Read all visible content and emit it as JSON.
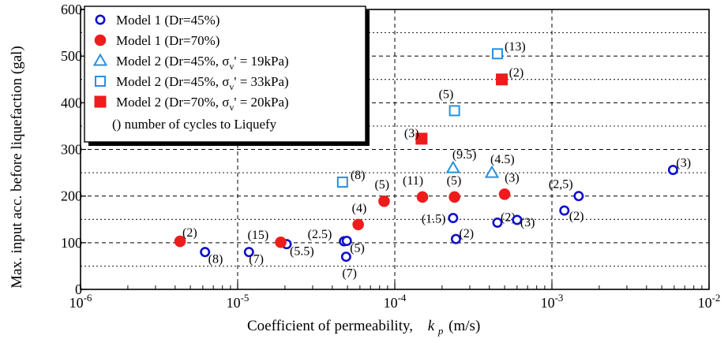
{
  "chart_data": {
    "type": "scatter",
    "title": "",
    "xlabel": "Coefficient of permeability,",
    "xlabel_var": "k",
    "xlabel_sub": "p",
    "xlabel_unit": "(m/s)",
    "ylabel": "Max. input acc. before liquefaction (gal)",
    "xscale": "log",
    "xlim": [
      1e-06,
      0.01
    ],
    "ylim": [
      0,
      600
    ],
    "grid": true,
    "legend_position": "top-left",
    "x_ticks": [
      {
        "value": 1e-06,
        "base": "10",
        "exp": "-6"
      },
      {
        "value": 1e-05,
        "base": "10",
        "exp": "-5"
      },
      {
        "value": 0.0001,
        "base": "10",
        "exp": "-4"
      },
      {
        "value": 0.001,
        "base": "10",
        "exp": "-3"
      },
      {
        "value": 0.01,
        "base": "10",
        "exp": "-2"
      }
    ],
    "y_ticks": [
      "0",
      "100",
      "200",
      "300",
      "400",
      "500",
      "600"
    ],
    "legend_note": "() number of cycles to Liquefy",
    "series": [
      {
        "name": "Model 1 (Dr=45%)",
        "legend_label": "Model 1 (Dr=45%)",
        "marker": "circle-open",
        "color": "#1010cc",
        "points": [
          {
            "x": 6.2e-06,
            "y": 80,
            "label": "(8)"
          },
          {
            "x": 1.18e-05,
            "y": 80,
            "label": "(7)"
          },
          {
            "x": 2.05e-05,
            "y": 97,
            "label": "(5.5)"
          },
          {
            "x": 4.75e-05,
            "y": 103,
            "label": "(2.5)"
          },
          {
            "x": 4.95e-05,
            "y": 104,
            "label": "(5)"
          },
          {
            "x": 4.9e-05,
            "y": 70,
            "label": "(7)"
          },
          {
            "x": 0.000235,
            "y": 153,
            "label": "(1.5)"
          },
          {
            "x": 0.000245,
            "y": 108,
            "label": "(2)"
          },
          {
            "x": 0.00045,
            "y": 143,
            "label": "(2)"
          },
          {
            "x": 0.0006,
            "y": 149,
            "label": "(3)"
          },
          {
            "x": 0.0012,
            "y": 169,
            "label": "(2)"
          },
          {
            "x": 0.00148,
            "y": 200,
            "label": "(2,5)"
          },
          {
            "x": 0.0059,
            "y": 256,
            "label": "(3)"
          }
        ]
      },
      {
        "name": "Model 1 (Dr=70%)",
        "legend_label": "Model 1 (Dr=70%)",
        "marker": "circle-filled",
        "color": "#ee1c1c",
        "points": [
          {
            "x": 4.3e-06,
            "y": 103,
            "label": "(2)"
          },
          {
            "x": 1.88e-05,
            "y": 101,
            "label": "(15)"
          },
          {
            "x": 5.85e-05,
            "y": 139,
            "label": "(4)"
          },
          {
            "x": 8.55e-05,
            "y": 189,
            "label": "(5)"
          },
          {
            "x": 0.00015,
            "y": 198,
            "label": "(11)"
          },
          {
            "x": 0.00024,
            "y": 198,
            "label": "(5)"
          },
          {
            "x": 0.0005,
            "y": 204,
            "label": "(3)"
          }
        ]
      },
      {
        "name": "Model 2 (Dr=45%, σv' = 19kPa)",
        "legend_label": "Model 2 (Dr=45%,  σ",
        "legend_sub": "v",
        "legend_tail": "' = 19kPa)",
        "marker": "triangle-open",
        "color": "#2a8fe0",
        "points": [
          {
            "x": 0.000235,
            "y": 260,
            "label": "(9.5)"
          },
          {
            "x": 0.000415,
            "y": 250,
            "label": "(4.5)"
          }
        ]
      },
      {
        "name": "Model 2 (Dr=45%, σv' = 33kPa)",
        "legend_label": "Model 2 (Dr=45%,  σ",
        "legend_sub": "v",
        "legend_tail": "' = 33kPa)",
        "marker": "square-open",
        "color": "#2a8fe0",
        "points": [
          {
            "x": 4.65e-05,
            "y": 230,
            "label": "(8)"
          },
          {
            "x": 0.00024,
            "y": 383,
            "label": "(5)"
          },
          {
            "x": 0.00045,
            "y": 505,
            "label": "(13)"
          }
        ]
      },
      {
        "name": "Model 2 (Dr=70%, σv' = 20kPa)",
        "legend_label": "Model 2 (Dr=70%,  σ",
        "legend_sub": "v",
        "legend_tail": "' = 20kPa)",
        "marker": "square-filled",
        "color": "#ee1c1c",
        "points": [
          {
            "x": 0.000148,
            "y": 323,
            "label": "(3)"
          },
          {
            "x": 0.00048,
            "y": 450,
            "label": "(2)"
          }
        ]
      }
    ]
  }
}
